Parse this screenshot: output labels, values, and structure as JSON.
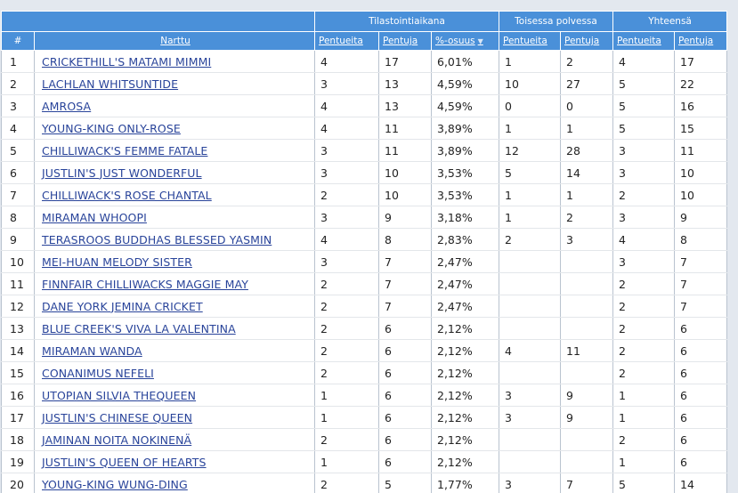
{
  "header": {
    "groups": [
      "Tilastointiaikana",
      "Toisessa polvessa",
      "Yhteensä"
    ],
    "rank": "#",
    "name": "Narttu",
    "pentueita": "Pentueita",
    "pentuja": "Pentuja",
    "osuus": "%-osuus",
    "sort_icon": "triangle-down-icon"
  },
  "colors": {
    "header_bg": "#4a90d9",
    "link": "#29449a",
    "page_bg": "#e3e8ef"
  },
  "rows": [
    {
      "rank": "1",
      "name": "CRICKETHILL'S MATAMI MIMMI",
      "p1": "4",
      "j1": "17",
      "pct": "6,01%",
      "p2": "1",
      "j2": "2",
      "p3": "4",
      "j3": "17"
    },
    {
      "rank": "2",
      "name": "LACHLAN WHITSUNTIDE",
      "p1": "3",
      "j1": "13",
      "pct": "4,59%",
      "p2": "10",
      "j2": "27",
      "p3": "5",
      "j3": "22"
    },
    {
      "rank": "3",
      "name": "AMROSA",
      "p1": "4",
      "j1": "13",
      "pct": "4,59%",
      "p2": "0",
      "j2": "0",
      "p3": "5",
      "j3": "16"
    },
    {
      "rank": "4",
      "name": "YOUNG-KING ONLY-ROSE",
      "p1": "4",
      "j1": "11",
      "pct": "3,89%",
      "p2": "1",
      "j2": "1",
      "p3": "5",
      "j3": "15"
    },
    {
      "rank": "5",
      "name": "CHILLIWACK'S FEMME FATALE",
      "p1": "3",
      "j1": "11",
      "pct": "3,89%",
      "p2": "12",
      "j2": "28",
      "p3": "3",
      "j3": "11"
    },
    {
      "rank": "6",
      "name": "JUSTLIN'S JUST WONDERFUL",
      "p1": "3",
      "j1": "10",
      "pct": "3,53%",
      "p2": "5",
      "j2": "14",
      "p3": "3",
      "j3": "10"
    },
    {
      "rank": "7",
      "name": "CHILLIWACK'S ROSE CHANTAL",
      "p1": "2",
      "j1": "10",
      "pct": "3,53%",
      "p2": "1",
      "j2": "1",
      "p3": "2",
      "j3": "10"
    },
    {
      "rank": "8",
      "name": "MIRAMAN WHOOPI",
      "p1": "3",
      "j1": "9",
      "pct": "3,18%",
      "p2": "1",
      "j2": "2",
      "p3": "3",
      "j3": "9"
    },
    {
      "rank": "9",
      "name": "TERASROOS BUDDHAS BLESSED YASMIN",
      "p1": "4",
      "j1": "8",
      "pct": "2,83%",
      "p2": "2",
      "j2": "3",
      "p3": "4",
      "j3": "8"
    },
    {
      "rank": "10",
      "name": "MEI-HUAN MELODY SISTER",
      "p1": "3",
      "j1": "7",
      "pct": "2,47%",
      "p2": "",
      "j2": "",
      "p3": "3",
      "j3": "7"
    },
    {
      "rank": "11",
      "name": "FINNFAIR CHILLIWACKS MAGGIE MAY",
      "p1": "2",
      "j1": "7",
      "pct": "2,47%",
      "p2": "",
      "j2": "",
      "p3": "2",
      "j3": "7"
    },
    {
      "rank": "12",
      "name": "DANE YORK JEMINA CRICKET",
      "p1": "2",
      "j1": "7",
      "pct": "2,47%",
      "p2": "",
      "j2": "",
      "p3": "2",
      "j3": "7"
    },
    {
      "rank": "13",
      "name": "BLUE CREEK'S VIVA LA VALENTINA",
      "p1": "2",
      "j1": "6",
      "pct": "2,12%",
      "p2": "",
      "j2": "",
      "p3": "2",
      "j3": "6"
    },
    {
      "rank": "14",
      "name": "MIRAMAN WANDA",
      "p1": "2",
      "j1": "6",
      "pct": "2,12%",
      "p2": "4",
      "j2": "11",
      "p3": "2",
      "j3": "6"
    },
    {
      "rank": "15",
      "name": "CONANIMUS NEFELI",
      "p1": "2",
      "j1": "6",
      "pct": "2,12%",
      "p2": "",
      "j2": "",
      "p3": "2",
      "j3": "6"
    },
    {
      "rank": "16",
      "name": "UTOPIAN SILVIA THEQUEEN",
      "p1": "1",
      "j1": "6",
      "pct": "2,12%",
      "p2": "3",
      "j2": "9",
      "p3": "1",
      "j3": "6"
    },
    {
      "rank": "17",
      "name": "JUSTLIN'S CHINESE QUEEN",
      "p1": "1",
      "j1": "6",
      "pct": "2,12%",
      "p2": "3",
      "j2": "9",
      "p3": "1",
      "j3": "6"
    },
    {
      "rank": "18",
      "name": "JAMINAN NOITA NOKINENÄ",
      "p1": "2",
      "j1": "6",
      "pct": "2,12%",
      "p2": "",
      "j2": "",
      "p3": "2",
      "j3": "6"
    },
    {
      "rank": "19",
      "name": "JUSTLIN'S QUEEN OF HEARTS",
      "p1": "1",
      "j1": "6",
      "pct": "2,12%",
      "p2": "",
      "j2": "",
      "p3": "1",
      "j3": "6"
    },
    {
      "rank": "20",
      "name": "YOUNG-KING WUNG-DING",
      "p1": "2",
      "j1": "5",
      "pct": "1,77%",
      "p2": "3",
      "j2": "7",
      "p3": "5",
      "j3": "14"
    }
  ]
}
